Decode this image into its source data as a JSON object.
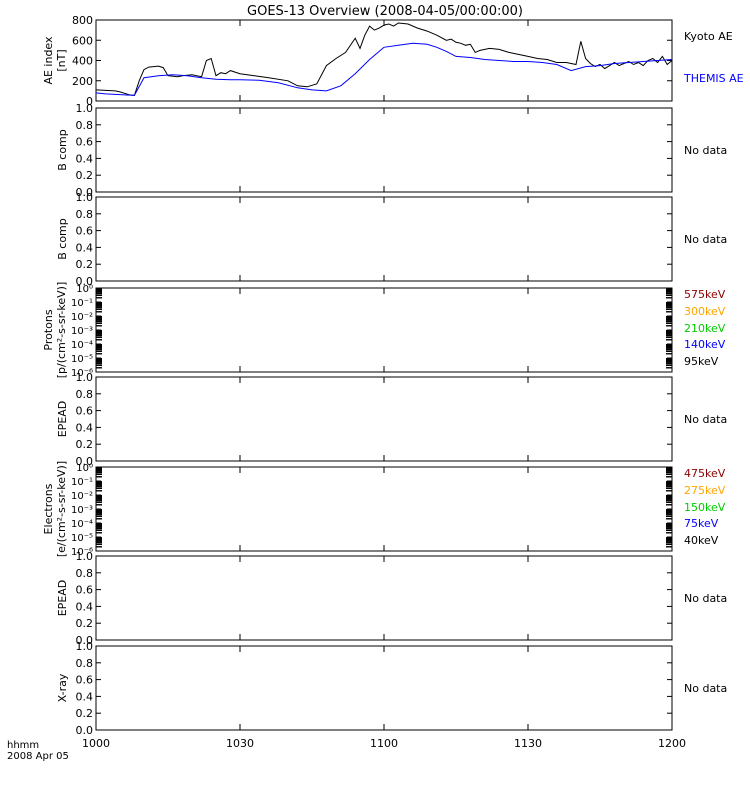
{
  "title": "GOES-13 Overview (2008-04-05/00:00:00)",
  "colors": {
    "black": "#000000",
    "blue": "#0000ff",
    "dark_red": "#8b0000",
    "orange": "#ffa500",
    "green": "#00cc00"
  },
  "time_axis": {
    "ticks": [
      "1000",
      "1030",
      "1100",
      "1130",
      "1200"
    ],
    "label_line1": "hhmm",
    "label_line2": "2008 Apr 05"
  },
  "chart_data": [
    {
      "type": "line",
      "ylabel_lines": [
        "AE index",
        "[nT]"
      ],
      "ylim": [
        0,
        800
      ],
      "yticks": [
        "800",
        "600",
        "400",
        "200",
        "0"
      ],
      "x_range": [
        "10:00",
        "12:00"
      ],
      "series": [
        {
          "name": "Kyoto AE",
          "color": "#000000",
          "x": [
            "10:00",
            "10:02",
            "10:04",
            "10:05",
            "10:07",
            "10:08",
            "10:09",
            "10:10",
            "10:11",
            "10:12",
            "10:13",
            "10:14",
            "10:15",
            "10:17",
            "10:18",
            "10:20",
            "10:22",
            "10:23",
            "10:24",
            "10:25",
            "10:26",
            "10:27",
            "10:28",
            "10:30",
            "10:33",
            "10:36",
            "10:40",
            "10:42",
            "10:44",
            "10:46",
            "10:48",
            "10:50",
            "10:52",
            "10:54",
            "10:55",
            "10:56",
            "10:57",
            "10:58",
            "10:59",
            "11:00",
            "11:01",
            "11:02",
            "11:03",
            "11:05",
            "11:07",
            "11:09",
            "11:11",
            "11:13",
            "11:14",
            "11:15",
            "11:16",
            "11:17",
            "11:18",
            "11:19",
            "11:20",
            "11:22",
            "11:24",
            "11:26",
            "11:28",
            "11:30",
            "11:32",
            "11:34",
            "11:36",
            "11:38",
            "11:40",
            "11:41",
            "11:42",
            "11:43",
            "11:44",
            "11:45",
            "11:46",
            "11:47",
            "11:48",
            "11:49",
            "11:50",
            "11:51",
            "11:52",
            "11:53",
            "11:54",
            "11:55",
            "11:56",
            "11:57",
            "11:58",
            "11:59",
            "12:00"
          ],
          "values": [
            110,
            105,
            100,
            90,
            60,
            55,
            200,
            310,
            335,
            340,
            345,
            330,
            250,
            240,
            250,
            260,
            240,
            400,
            420,
            250,
            280,
            270,
            300,
            270,
            250,
            230,
            200,
            150,
            140,
            170,
            350,
            420,
            480,
            620,
            520,
            650,
            740,
            700,
            720,
            750,
            760,
            740,
            770,
            760,
            720,
            690,
            650,
            600,
            610,
            580,
            570,
            550,
            560,
            480,
            500,
            520,
            510,
            480,
            460,
            440,
            420,
            410,
            380,
            380,
            360,
            590,
            420,
            370,
            340,
            360,
            320,
            350,
            380,
            350,
            370,
            390,
            360,
            380,
            350,
            400,
            420,
            380,
            440,
            360,
            400
          ]
        },
        {
          "name": "THEMIS AE",
          "color": "#0000ff",
          "x": [
            "10:00",
            "10:02",
            "10:04",
            "10:06",
            "10:08",
            "10:10",
            "10:13",
            "10:16",
            "10:19",
            "10:22",
            "10:25",
            "10:28",
            "10:30",
            "10:34",
            "10:38",
            "10:42",
            "10:45",
            "10:48",
            "10:51",
            "10:54",
            "10:57",
            "11:00",
            "11:03",
            "11:06",
            "11:09",
            "11:11",
            "11:13",
            "11:15",
            "11:18",
            "11:21",
            "11:24",
            "11:27",
            "11:30",
            "11:33",
            "11:36",
            "11:39",
            "11:42",
            "11:45",
            "11:48",
            "11:51",
            "11:54",
            "11:57",
            "12:00"
          ],
          "values": [
            80,
            70,
            65,
            60,
            55,
            230,
            250,
            260,
            250,
            230,
            215,
            210,
            210,
            205,
            180,
            130,
            110,
            100,
            150,
            270,
            410,
            530,
            550,
            570,
            560,
            530,
            490,
            440,
            430,
            410,
            400,
            390,
            390,
            380,
            360,
            300,
            340,
            350,
            370,
            380,
            390,
            400,
            410
          ]
        }
      ]
    },
    {
      "type": "line",
      "ylabel_lines": [
        "B comp"
      ],
      "ylim": [
        0,
        1
      ],
      "yticks": [
        "1.0",
        "0.8",
        "0.6",
        "0.4",
        "0.2",
        "0.0"
      ],
      "status": "No data",
      "series": []
    },
    {
      "type": "line",
      "ylabel_lines": [
        "B comp"
      ],
      "ylim": [
        0,
        1
      ],
      "yticks": [
        "1.0",
        "0.8",
        "0.6",
        "0.4",
        "0.2",
        "0.0"
      ],
      "status": "No data",
      "series": []
    },
    {
      "type": "line",
      "scale": "log",
      "ylabel_lines": [
        "Protons",
        "[p/(cm²-s-sr-keV)]"
      ],
      "ylim": [
        1e-06,
        1
      ],
      "yticks": [
        "10⁰",
        "10⁻¹",
        "10⁻²",
        "10⁻³",
        "10⁻⁴",
        "10⁻⁵",
        "10⁻⁶"
      ],
      "series": [
        {
          "name": "575keV",
          "color": "#8b0000",
          "values": []
        },
        {
          "name": "300keV",
          "color": "#ffa500",
          "values": []
        },
        {
          "name": "210keV",
          "color": "#00cc00",
          "values": []
        },
        {
          "name": "140keV",
          "color": "#0000ff",
          "values": []
        },
        {
          "name": "95keV",
          "color": "#000000",
          "values": []
        }
      ]
    },
    {
      "type": "line",
      "ylabel_lines": [
        "EPEAD"
      ],
      "ylim": [
        0,
        1
      ],
      "yticks": [
        "1.0",
        "0.8",
        "0.6",
        "0.4",
        "0.2",
        "0.0"
      ],
      "status": "No data",
      "series": []
    },
    {
      "type": "line",
      "scale": "log",
      "ylabel_lines": [
        "Electrons",
        "[e/(cm²-s-sr-keV)]"
      ],
      "ylim": [
        1e-06,
        1
      ],
      "yticks": [
        "10⁰",
        "10⁻¹",
        "10⁻²",
        "10⁻³",
        "10⁻⁴",
        "10⁻⁵",
        "10⁻⁶"
      ],
      "series": [
        {
          "name": "475keV",
          "color": "#8b0000",
          "values": []
        },
        {
          "name": "275keV",
          "color": "#ffa500",
          "values": []
        },
        {
          "name": "150keV",
          "color": "#00cc00",
          "values": []
        },
        {
          "name": "75keV",
          "color": "#0000ff",
          "values": []
        },
        {
          "name": "40keV",
          "color": "#000000",
          "values": []
        }
      ]
    },
    {
      "type": "line",
      "ylabel_lines": [
        "EPEAD"
      ],
      "ylim": [
        0,
        1
      ],
      "yticks": [
        "1.0",
        "0.8",
        "0.6",
        "0.4",
        "0.2",
        "0.0"
      ],
      "status": "No data",
      "series": []
    },
    {
      "type": "line",
      "ylabel_lines": [
        "X-ray"
      ],
      "ylim": [
        0,
        1
      ],
      "yticks": [
        "1.0",
        "0.8",
        "0.6",
        "0.4",
        "0.2",
        "0.0"
      ],
      "status": "No data",
      "series": []
    }
  ]
}
